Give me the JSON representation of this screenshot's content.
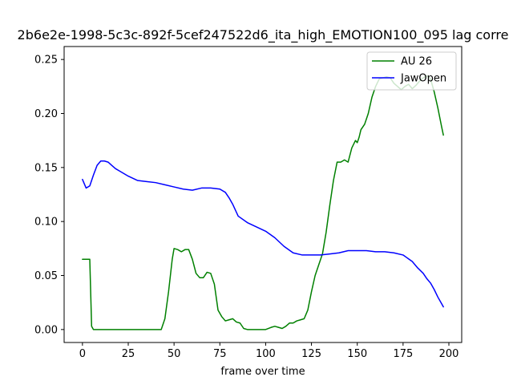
{
  "chart_data": {
    "type": "line",
    "title": "2b6e2e-1998-5c3c-892f-5cef247522d6_ita_high_EMOTION100_095  lag corre",
    "xlabel": "frame over time",
    "ylabel": "",
    "xlim": [
      -10,
      207
    ],
    "ylim": [
      -0.012,
      0.262
    ],
    "xticks": [
      0,
      25,
      50,
      75,
      100,
      125,
      150,
      175,
      200
    ],
    "yticks": [
      0.0,
      0.05,
      0.1,
      0.15,
      0.2,
      0.25
    ],
    "ytick_labels": [
      "0.00",
      "0.05",
      "0.10",
      "0.15",
      "0.20",
      "0.25"
    ],
    "legend": "top-right",
    "grid": false,
    "series": [
      {
        "name": "AU 26",
        "color": "#008000",
        "x": [
          0,
          4,
          5,
          6,
          10,
          20,
          30,
          40,
          43,
          45,
          47,
          49,
          50,
          52,
          54,
          56,
          58,
          60,
          62,
          64,
          66,
          68,
          70,
          72,
          74,
          76,
          78,
          80,
          82,
          84,
          86,
          88,
          90,
          95,
          100,
          103,
          105,
          107,
          109,
          111,
          113,
          115,
          117,
          119,
          121,
          123,
          125,
          127,
          129,
          131,
          133,
          135,
          137,
          139,
          141,
          143,
          145,
          147,
          149,
          150,
          151,
          152,
          154,
          156,
          158,
          160,
          162,
          164,
          166,
          168,
          170,
          172,
          174,
          176,
          178,
          180,
          182,
          184,
          186,
          188,
          190,
          192,
          194,
          196,
          197
        ],
        "values": [
          0.065,
          0.065,
          0.003,
          0.0,
          0.0,
          0.0,
          0.0,
          0.0,
          0.0,
          0.01,
          0.035,
          0.065,
          0.075,
          0.074,
          0.072,
          0.074,
          0.074,
          0.065,
          0.052,
          0.048,
          0.048,
          0.053,
          0.052,
          0.042,
          0.018,
          0.012,
          0.008,
          0.009,
          0.01,
          0.007,
          0.006,
          0.001,
          0.0,
          0.0,
          0.0,
          0.002,
          0.003,
          0.002,
          0.001,
          0.003,
          0.006,
          0.006,
          0.008,
          0.009,
          0.01,
          0.018,
          0.035,
          0.05,
          0.06,
          0.07,
          0.09,
          0.115,
          0.138,
          0.155,
          0.155,
          0.157,
          0.155,
          0.168,
          0.175,
          0.173,
          0.178,
          0.185,
          0.19,
          0.2,
          0.215,
          0.225,
          0.232,
          0.233,
          0.234,
          0.233,
          0.228,
          0.225,
          0.222,
          0.225,
          0.227,
          0.223,
          0.226,
          0.23,
          0.233,
          0.235,
          0.232,
          0.22,
          0.205,
          0.188,
          0.18
        ]
      },
      {
        "name": "JawOpen",
        "color": "#0000ff",
        "x": [
          0,
          2,
          4,
          6,
          8,
          10,
          12,
          14,
          16,
          18,
          20,
          25,
          30,
          35,
          40,
          45,
          50,
          55,
          60,
          65,
          70,
          75,
          78,
          80,
          82,
          85,
          90,
          95,
          100,
          105,
          110,
          115,
          120,
          125,
          130,
          135,
          140,
          145,
          150,
          155,
          160,
          165,
          170,
          175,
          180,
          183,
          186,
          188,
          190,
          192,
          194,
          196,
          197
        ],
        "values": [
          0.139,
          0.131,
          0.133,
          0.143,
          0.152,
          0.156,
          0.156,
          0.155,
          0.152,
          0.149,
          0.147,
          0.142,
          0.138,
          0.137,
          0.136,
          0.134,
          0.132,
          0.13,
          0.129,
          0.131,
          0.131,
          0.13,
          0.127,
          0.122,
          0.116,
          0.105,
          0.099,
          0.095,
          0.091,
          0.085,
          0.077,
          0.071,
          0.069,
          0.069,
          0.069,
          0.07,
          0.071,
          0.073,
          0.073,
          0.073,
          0.072,
          0.072,
          0.071,
          0.069,
          0.063,
          0.057,
          0.052,
          0.047,
          0.043,
          0.037,
          0.03,
          0.024,
          0.021
        ]
      }
    ]
  }
}
